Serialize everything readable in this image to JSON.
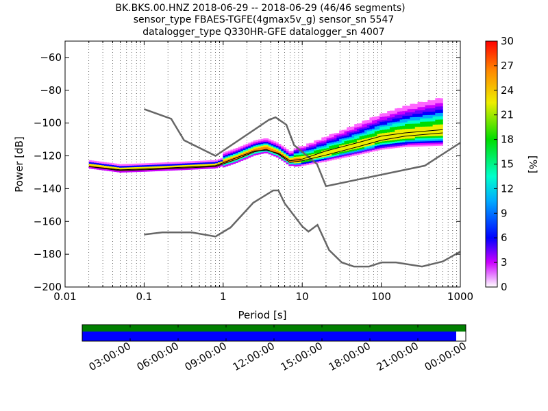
{
  "chart_data": {
    "type": "heatmap",
    "title_lines": [
      "BK.BKS.00.HNZ   2018-06-29 -- 2018-06-29  (46/46 segments)",
      "sensor_type FBAES-TGFE(4gmax5v_g) sensor_sn 5547",
      "datalogger_type Q330HR-GFE datalogger_sn 4007"
    ],
    "xlabel": "Period [s]",
    "ylabel": "Power [dB]",
    "xscale": "log",
    "xlim": [
      0.01,
      1000
    ],
    "ylim": [
      -200,
      -50
    ],
    "xticks": [
      {
        "v": 0.01,
        "label": "0.01"
      },
      {
        "v": 0.1,
        "label": "0.1"
      },
      {
        "v": 1,
        "label": "1"
      },
      {
        "v": 10,
        "label": "10"
      },
      {
        "v": 100,
        "label": "100"
      },
      {
        "v": 1000,
        "label": "1000"
      }
    ],
    "yticks": [
      {
        "v": -60,
        "label": "−60"
      },
      {
        "v": -80,
        "label": "−80"
      },
      {
        "v": -100,
        "label": "−100"
      },
      {
        "v": -120,
        "label": "−120"
      },
      {
        "v": -140,
        "label": "−140"
      },
      {
        "v": -160,
        "label": "−160"
      },
      {
        "v": -180,
        "label": "−180"
      },
      {
        "v": -200,
        "label": "−200"
      }
    ],
    "grid": "dotted vertical at log subdivisions",
    "colorbar": {
      "label": "[%]",
      "range": [
        0,
        30
      ],
      "ticks": [
        {
          "v": 0,
          "label": "0"
        },
        {
          "v": 3,
          "label": "3"
        },
        {
          "v": 6,
          "label": "6"
        },
        {
          "v": 9,
          "label": "9"
        },
        {
          "v": 12,
          "label": "12"
        },
        {
          "v": 15,
          "label": "15"
        },
        {
          "v": 18,
          "label": "18"
        },
        {
          "v": 21,
          "label": "21"
        },
        {
          "v": 24,
          "label": "24"
        },
        {
          "v": 27,
          "label": "27"
        },
        {
          "v": 30,
          "label": "30"
        }
      ]
    },
    "noise_models": [
      {
        "id": "nhnm",
        "points": [
          [
            0.1,
            -91.5
          ],
          [
            0.22,
            -97.4
          ],
          [
            0.32,
            -110.5
          ],
          [
            0.8,
            -120
          ],
          [
            3.8,
            -98
          ],
          [
            4.6,
            -96.5
          ],
          [
            6.3,
            -101
          ],
          [
            7.9,
            -113.5
          ],
          [
            15.4,
            -125
          ],
          [
            20,
            -138.5
          ],
          [
            354.8,
            -126
          ],
          [
            1000,
            -112
          ]
        ]
      },
      {
        "id": "nlnm",
        "points": [
          [
            0.1,
            -168
          ],
          [
            0.17,
            -166.7
          ],
          [
            0.4,
            -166.7
          ],
          [
            0.8,
            -169.2
          ],
          [
            1.24,
            -163.7
          ],
          [
            2.4,
            -148.6
          ],
          [
            4.3,
            -141.1
          ],
          [
            5,
            -141.1
          ],
          [
            6,
            -149
          ],
          [
            10,
            -163
          ],
          [
            12,
            -166.2
          ],
          [
            15.6,
            -162.1
          ],
          [
            21.9,
            -177.5
          ],
          [
            31.6,
            -185
          ],
          [
            45,
            -187.5
          ],
          [
            70,
            -187.5
          ],
          [
            101,
            -185
          ],
          [
            154,
            -185
          ],
          [
            328,
            -187.5
          ],
          [
            600,
            -184.4
          ],
          [
            1000,
            -178.4
          ]
        ]
      }
    ],
    "mean_curve": [
      [
        0.02,
        -126.5
      ],
      [
        0.05,
        -128.5
      ],
      [
        0.1,
        -128
      ],
      [
        0.3,
        -127
      ],
      [
        0.8,
        -126
      ],
      [
        1.5,
        -121
      ],
      [
        2.5,
        -117
      ],
      [
        3.5,
        -116.5
      ],
      [
        5,
        -118.5
      ],
      [
        7,
        -123
      ],
      [
        10,
        -122
      ],
      [
        20,
        -117
      ],
      [
        50,
        -112
      ],
      [
        100,
        -108
      ],
      [
        200,
        -106
      ],
      [
        600,
        -104
      ]
    ],
    "mode_curve": [
      [
        0.02,
        -126.5
      ],
      [
        0.05,
        -129
      ],
      [
        0.1,
        -128.5
      ],
      [
        0.3,
        -127.5
      ],
      [
        0.8,
        -126.5
      ],
      [
        1.5,
        -122
      ],
      [
        2.5,
        -117.5
      ],
      [
        3.5,
        -116
      ],
      [
        5,
        -119
      ],
      [
        7,
        -124
      ],
      [
        10,
        -123
      ],
      [
        20,
        -119.5
      ],
      [
        50,
        -114.5
      ],
      [
        100,
        -110.5
      ],
      [
        200,
        -108
      ],
      [
        600,
        -106
      ]
    ],
    "timeline": {
      "tick_labels": [
        "03:00:00",
        "06:00:00",
        "09:00:00",
        "12:00:00",
        "15:00:00",
        "18:00:00",
        "21:00:00",
        "00:00:00"
      ],
      "data_fraction": 0.975,
      "available_color": "#007f00",
      "used_color": "#0000ff"
    }
  }
}
